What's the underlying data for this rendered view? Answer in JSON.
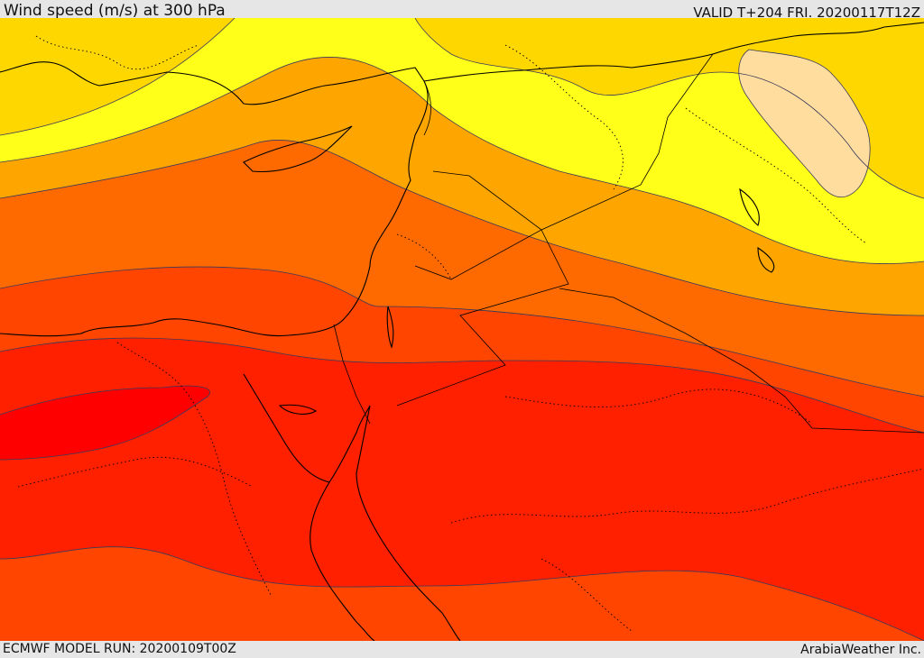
{
  "header": {
    "title": "Wind speed (m/s) at 300 hPa",
    "valid": "VALID T+204 FRI. 20200117T12Z"
  },
  "footer": {
    "model_run": "ECMWF MODEL RUN: 20200109T00Z",
    "credit": "ArabiaWeather Inc."
  },
  "colors": {
    "band_1": "#ffff1a",
    "band_2": "#ffd700",
    "band_3": "#ffa500",
    "band_4": "#ff6a00",
    "band_5": "#ff4500",
    "band_6": "#ff2000",
    "band_7": "#ff0000",
    "maximum_patch": "#ffdd9f"
  }
}
